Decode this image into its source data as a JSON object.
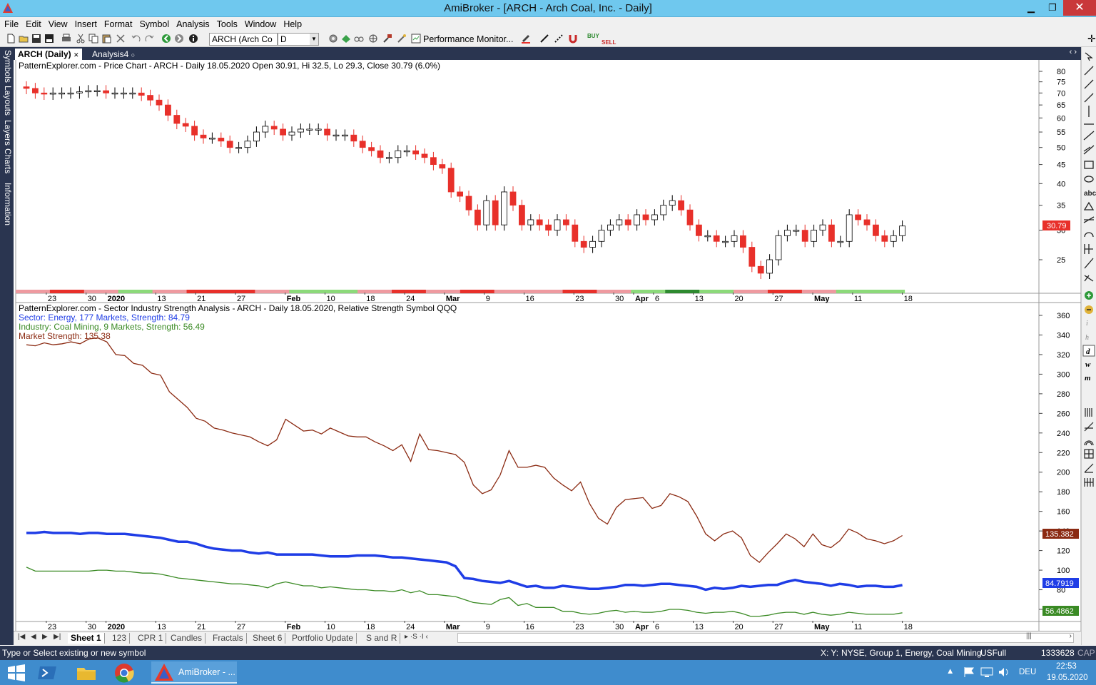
{
  "window": {
    "title": "AmiBroker - [ARCH - Arch Coal, Inc. - Daily]",
    "min": "▁",
    "restore": "❐",
    "close": "✕"
  },
  "menu": [
    "File",
    "Edit",
    "View",
    "Insert",
    "Format",
    "Symbol",
    "Analysis",
    "Tools",
    "Window",
    "Help"
  ],
  "toolbar": {
    "symbol_value": "ARCH (Arch Co",
    "interval_value": "D",
    "perf_label": "Performance Monitor...",
    "buy_label": "BUY",
    "sell_label": "SELL"
  },
  "sidebar": [
    "Symbols",
    "Layouts",
    "Layers",
    "Charts",
    "Information"
  ],
  "tabs": [
    {
      "label": "ARCH (Daily)"
    },
    {
      "label": "Analysis4"
    }
  ],
  "price_chart": {
    "header": "PatternExplorer.com - Price Chart - ARCH - Daily 18.05.2020 Open 30.91, Hi 32.5, Lo 29.3, Close 30.79 (6.0%)",
    "yticks": [
      80,
      75,
      70,
      65,
      60,
      55,
      50,
      45,
      40,
      35,
      30,
      25
    ],
    "last_label": "30.79",
    "colors": {
      "down": "#e8302a",
      "up": "#ffffff",
      "outline": "#000000"
    }
  },
  "strength_chart": {
    "header": "PatternExplorer.com - Sector Industry Strength Analysis - ARCH - Daily 18.05.2020, Relative Strength Symbol QQQ",
    "sector_label": "Sector: Energy, 177 Markets, Strength: 84.79",
    "industry_label": "Industry: Coal Mining, 9 Markets, Strength: 56.49",
    "market_label": "Market Strength: 135.38",
    "yticks": [
      360,
      340,
      320,
      300,
      280,
      260,
      240,
      220,
      200,
      180,
      160,
      140,
      120,
      100,
      80,
      60
    ],
    "market_last": "135.382",
    "sector_last": "84.7919",
    "industry_last": "56.4862",
    "colors": {
      "market": "#8b2a12",
      "sector": "#1f3de6",
      "industry": "#3a8a24"
    }
  },
  "chart_data": [
    {
      "type": "candlestick",
      "title": "PatternExplorer.com - Price Chart - ARCH - Daily",
      "x_tick_labels": [
        "23",
        "30",
        "2020",
        "13",
        "21",
        "27",
        "Feb",
        "10",
        "18",
        "24",
        "Mar",
        "9",
        "16",
        "23",
        "30",
        "Apr",
        "6",
        "13",
        "20",
        "27",
        "May",
        "11",
        "18"
      ],
      "close": [
        72,
        70,
        69.5,
        70,
        70,
        70,
        70.5,
        71,
        71,
        70,
        70,
        70,
        70,
        69,
        67,
        65,
        61,
        58,
        57,
        54,
        53,
        53,
        52,
        50,
        50,
        52,
        55,
        57,
        56,
        54,
        55,
        56,
        56,
        56,
        54,
        54,
        54,
        52,
        50,
        49,
        47,
        47,
        49,
        49,
        48,
        47,
        45,
        44,
        38,
        37,
        34,
        31,
        36,
        31,
        38,
        35,
        31,
        32,
        31,
        30,
        32,
        31,
        28,
        27,
        28,
        30,
        31,
        32,
        31,
        33,
        32,
        33,
        35,
        36,
        34,
        31,
        29,
        29,
        28,
        28,
        29,
        27,
        24,
        23,
        25,
        29,
        30,
        30,
        28,
        30,
        31,
        28,
        28,
        33,
        32,
        31,
        29,
        28,
        29,
        30.79
      ],
      "ylim": [
        20,
        85
      ]
    },
    {
      "type": "line",
      "title": "PatternExplorer.com - Sector Industry Strength Analysis - ARCH - Daily",
      "x_tick_labels": [
        "23",
        "30",
        "2020",
        "13",
        "21",
        "27",
        "Feb",
        "10",
        "18",
        "24",
        "Mar",
        "9",
        "16",
        "23",
        "30",
        "Apr",
        "6",
        "13",
        "20",
        "27",
        "May",
        "11",
        "18"
      ],
      "series": [
        {
          "name": "Market Strength: 135.38",
          "values": [
            330,
            329,
            332,
            330,
            331,
            333,
            331,
            336,
            337,
            333,
            320,
            319,
            311,
            309,
            301,
            299,
            282,
            274,
            266,
            255,
            252,
            245,
            243,
            240,
            238,
            236,
            231,
            227,
            233,
            254,
            248,
            242,
            243,
            239,
            245,
            241,
            237,
            236,
            236,
            231,
            227,
            222,
            228,
            211,
            239,
            223,
            222,
            220,
            218,
            210,
            187,
            178,
            182,
            197,
            222,
            205,
            205,
            207,
            205,
            194,
            187,
            181,
            190,
            168,
            153,
            147,
            164,
            172,
            173,
            174,
            163,
            166,
            178,
            175,
            170,
            155,
            137,
            130,
            137,
            140,
            133,
            115,
            108,
            118,
            127,
            137,
            132,
            124,
            137,
            126,
            123,
            130,
            142,
            138,
            132,
            130,
            127,
            130,
            135.38
          ]
        },
        {
          "name": "Sector: Energy, 177 Markets, Strength: 84.79",
          "values": [
            138,
            138,
            139,
            138,
            138,
            138,
            137,
            138,
            138,
            137,
            137,
            137,
            136,
            135,
            134,
            133,
            131,
            129,
            129,
            127,
            124,
            122,
            121,
            120,
            120,
            118,
            117,
            118,
            116,
            116,
            116,
            116,
            116,
            115,
            114,
            114,
            114,
            115,
            115,
            115,
            114,
            113,
            113,
            112,
            111,
            110,
            109,
            108,
            104,
            92,
            91,
            89,
            88,
            87,
            89,
            86,
            83,
            84,
            82,
            82,
            84,
            83,
            82,
            81,
            81,
            82,
            83,
            85,
            85,
            84,
            85,
            86,
            86,
            85,
            84,
            83,
            80,
            82,
            81,
            82,
            84,
            83,
            84,
            85,
            85,
            88,
            90,
            88,
            87,
            86,
            84,
            86,
            85,
            83,
            84,
            84,
            83,
            83,
            84.79
          ]
        },
        {
          "name": "Industry: Coal Mining, 9 Markets, Strength: 56.49",
          "values": [
            103,
            99,
            99,
            99,
            99,
            99,
            99,
            99,
            100,
            100,
            99,
            99,
            98,
            97,
            97,
            96,
            94,
            92,
            91,
            90,
            89,
            88,
            87,
            86,
            86,
            85,
            84,
            82,
            86,
            88,
            86,
            84,
            84,
            82,
            83,
            82,
            81,
            80,
            80,
            79,
            79,
            78,
            80,
            77,
            79,
            75,
            75,
            74,
            73,
            70,
            67,
            66,
            65,
            70,
            72,
            64,
            66,
            62,
            62,
            62,
            58,
            58,
            56,
            55,
            56,
            58,
            59,
            57,
            58,
            57,
            57,
            58,
            60,
            60,
            59,
            57,
            56,
            57,
            57,
            58,
            56,
            53,
            53,
            54,
            56,
            57,
            57,
            55,
            57,
            55,
            54,
            55,
            57,
            56,
            55,
            55,
            55,
            55,
            56.49
          ]
        }
      ],
      "ylim": [
        55,
        365
      ]
    }
  ],
  "sheet_tabs": [
    "Sheet 1",
    "123",
    "CPR 1",
    "Candles",
    "Fractals",
    "Sheet 6",
    "Portfolio Update",
    "S and R"
  ],
  "status": {
    "left": "Type or Select existing or new symbol",
    "xy": "X: Y:",
    "info": "NYSE, Group 1, Energy, Coal Mining",
    "db": "USFull",
    "mem": "1333628",
    "caps": "CAP"
  },
  "taskbar": {
    "app_label": "AmiBroker - ...",
    "lang": "DEU",
    "time": "22:53",
    "date": "19.05.2020"
  }
}
